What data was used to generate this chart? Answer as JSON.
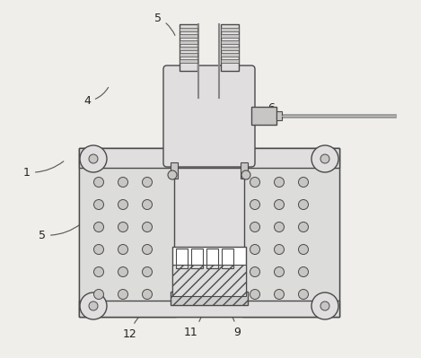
{
  "bg_color": "#f0eeea",
  "line_color": "#4a4a4a",
  "lw": 1.0,
  "figsize": [
    4.69,
    3.99
  ],
  "dpi": 100
}
